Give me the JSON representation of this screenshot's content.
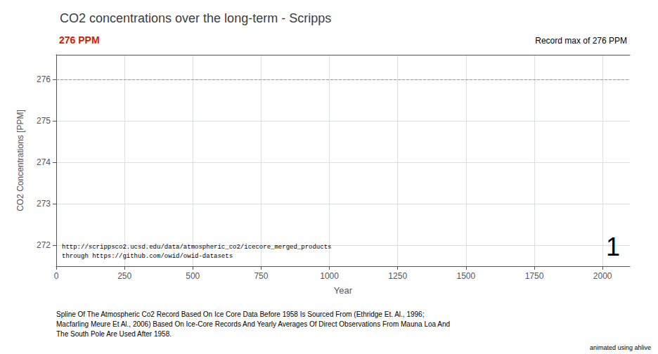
{
  "chart_data": {
    "type": "line",
    "title": "CO2 concentrations over the long-term - Scripps",
    "xlabel": "Year",
    "ylabel": "CO2 Concentrations [PPM]",
    "x": [],
    "values": [],
    "xlim": [
      0,
      2100
    ],
    "ylim": [
      271.5,
      276.6
    ],
    "xticks": [
      0,
      250,
      500,
      750,
      1000,
      1250,
      1500,
      1750,
      2000
    ],
    "yticks": [
      272,
      273,
      274,
      275,
      276
    ],
    "grid": true,
    "hline": {
      "value": 276,
      "line_style": "dashed",
      "color": "#999999"
    },
    "annotations": [
      {
        "text": "276 PPM",
        "color": "#cc2200"
      },
      {
        "text": "Record max of 276 PPM"
      },
      {
        "text": "1"
      },
      {
        "text": "http://scrippsco2.ucsd.edu/data/atmospheric_co2/icecore_merged_products\nthrough https://github.com/owid/owid-datasets"
      },
      {
        "text": "Spline Of The Atmospheric Co2 Record Based On Ice Core Data Before 1958 Is Sourced From (Ethridge Et. Al., 1996;\nMacfarling Meure Et Al., 2006) Based On Ice-Core Records And Yearly Averages Of Direct Observations From Mauna Loa And\nThe South Pole Are Used After 1958."
      },
      {
        "text": "animated using ahlive"
      }
    ]
  }
}
